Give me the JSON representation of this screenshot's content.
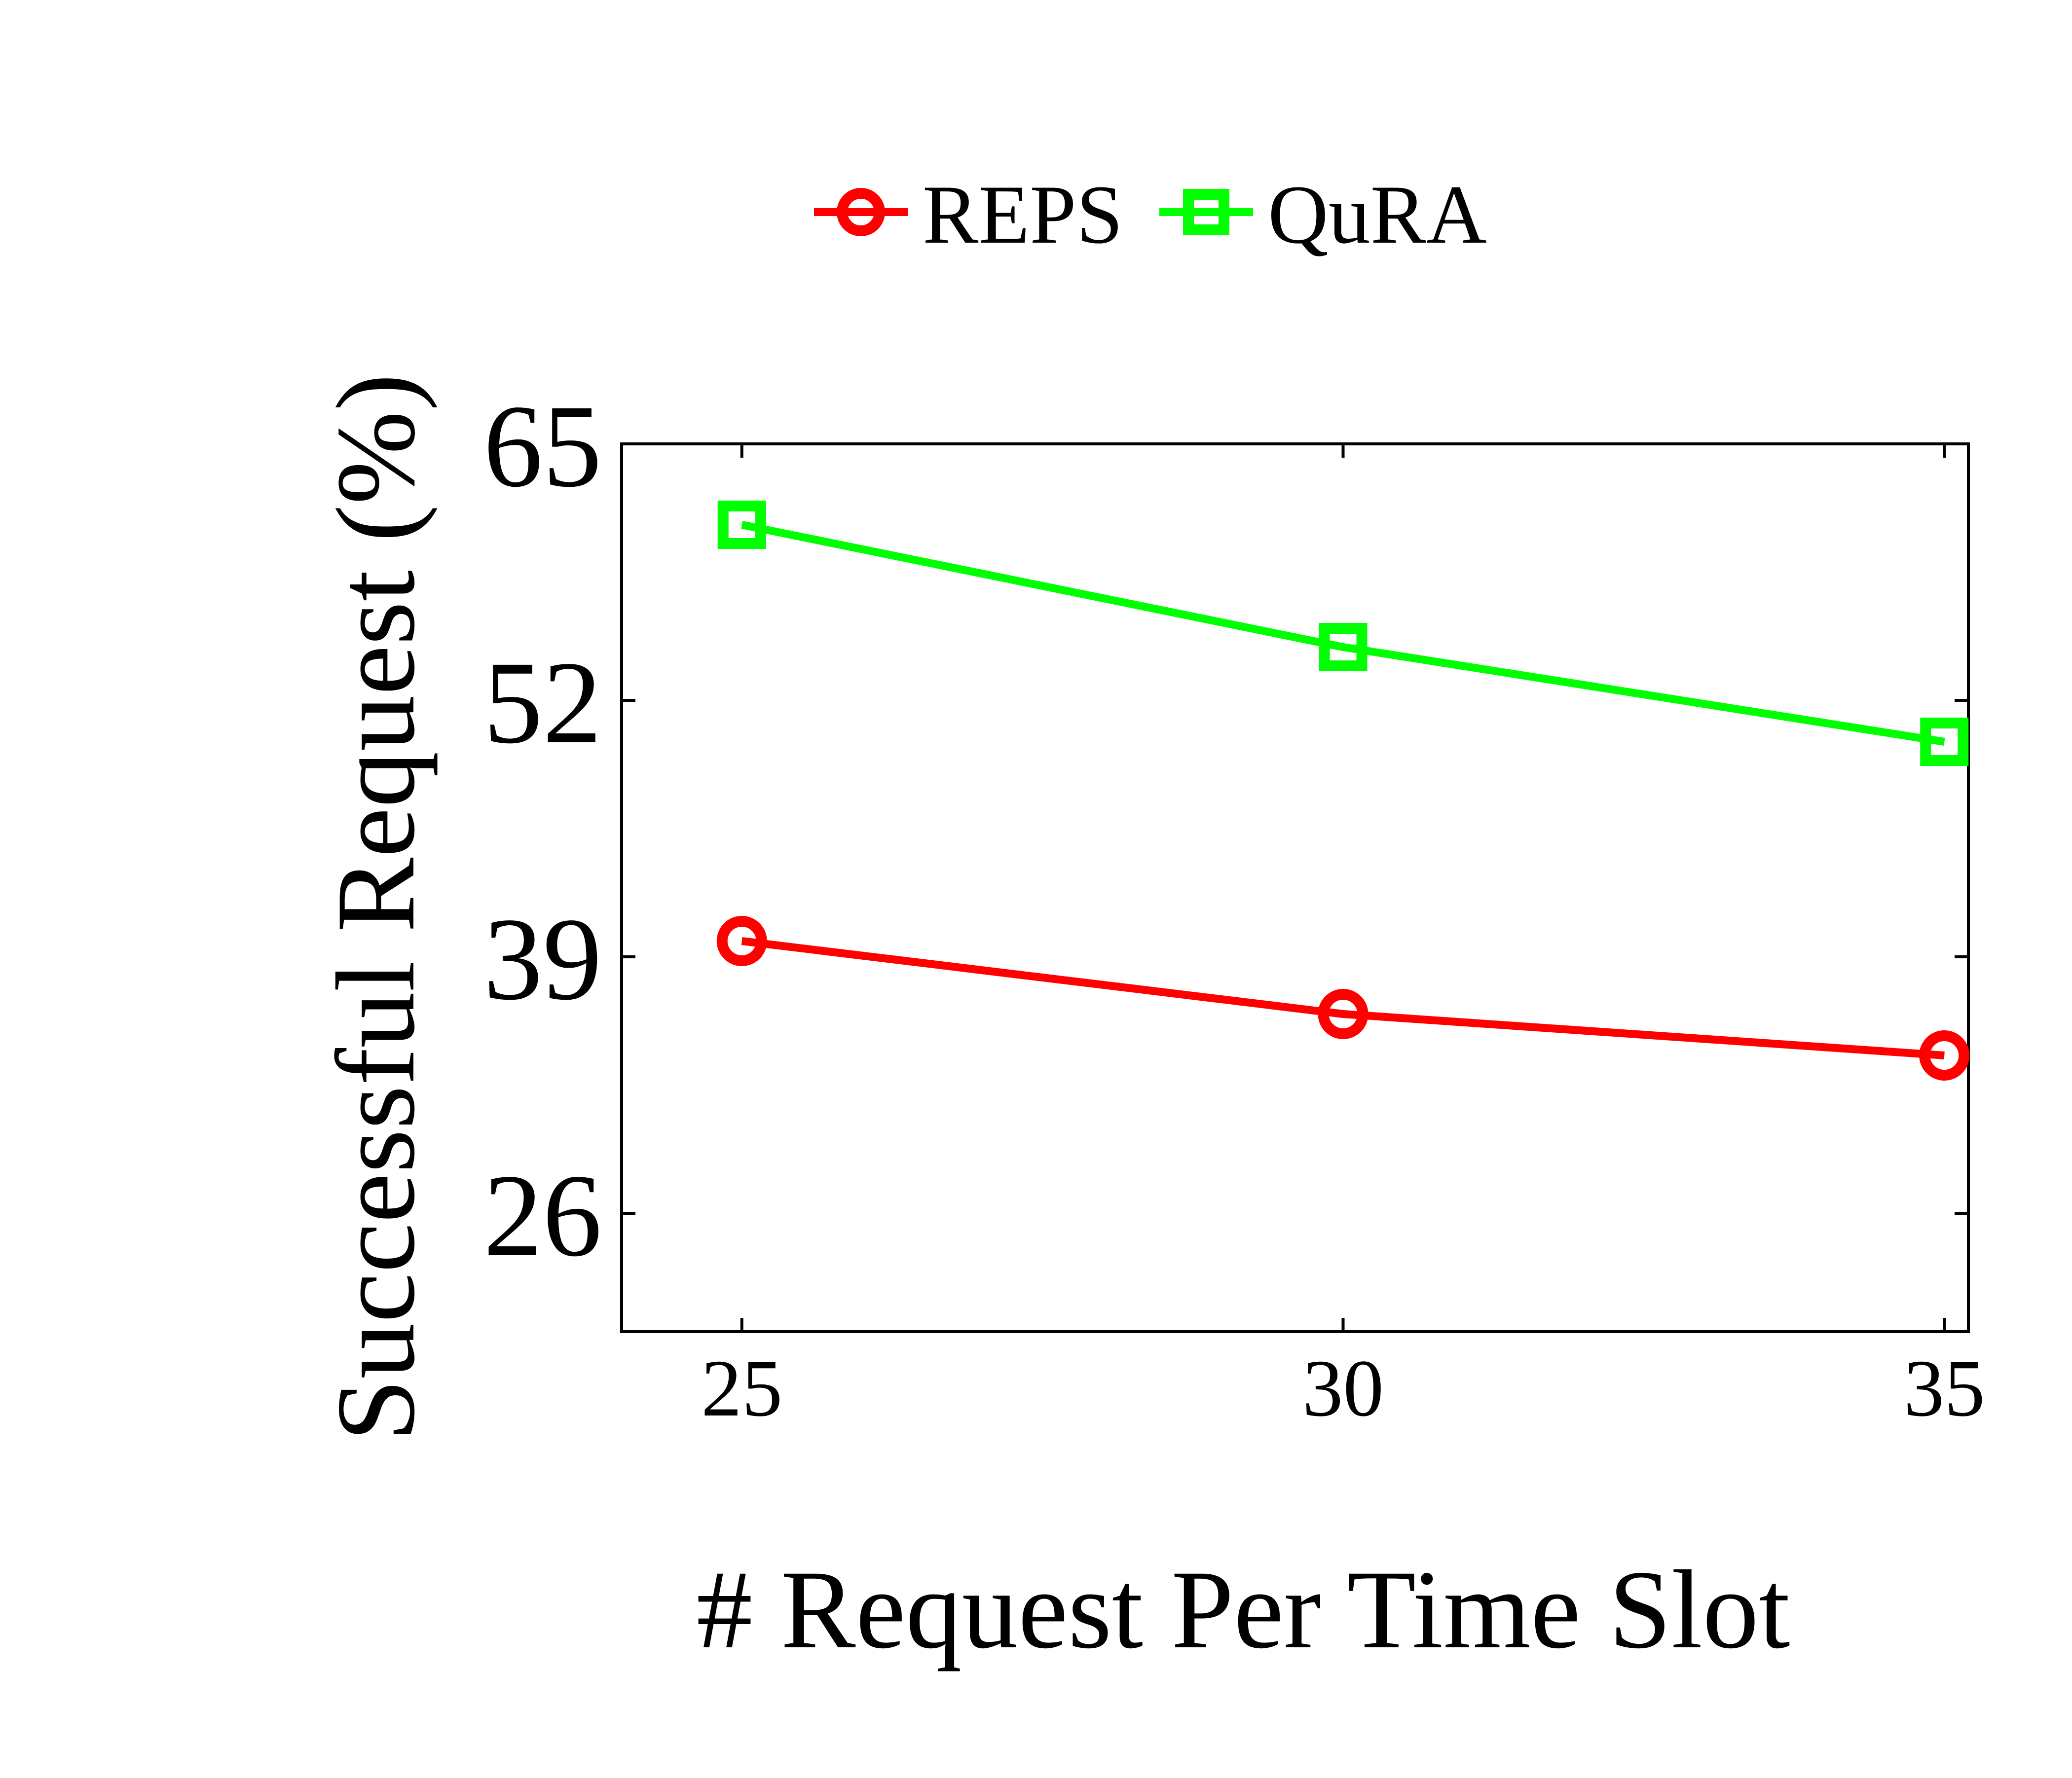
{
  "chart_data": {
    "type": "line",
    "title": "",
    "xlabel": "# Request Per Time Slot",
    "ylabel": "Successful Request (%)",
    "x": [
      25,
      30,
      35
    ],
    "x_ticks": [
      "25",
      "30",
      "35"
    ],
    "y_ticks": [
      "26",
      "39",
      "52",
      "65"
    ],
    "ylim": [
      20,
      65
    ],
    "grid": false,
    "legend_position": "top-center",
    "series": [
      {
        "name": "REPS",
        "values": [
          39.8,
          36.1,
          34.0
        ],
        "color": "#ff0000",
        "marker": "circle"
      },
      {
        "name": "QuRA",
        "values": [
          60.9,
          54.7,
          49.9
        ],
        "color": "#00ff00",
        "marker": "square"
      }
    ]
  }
}
